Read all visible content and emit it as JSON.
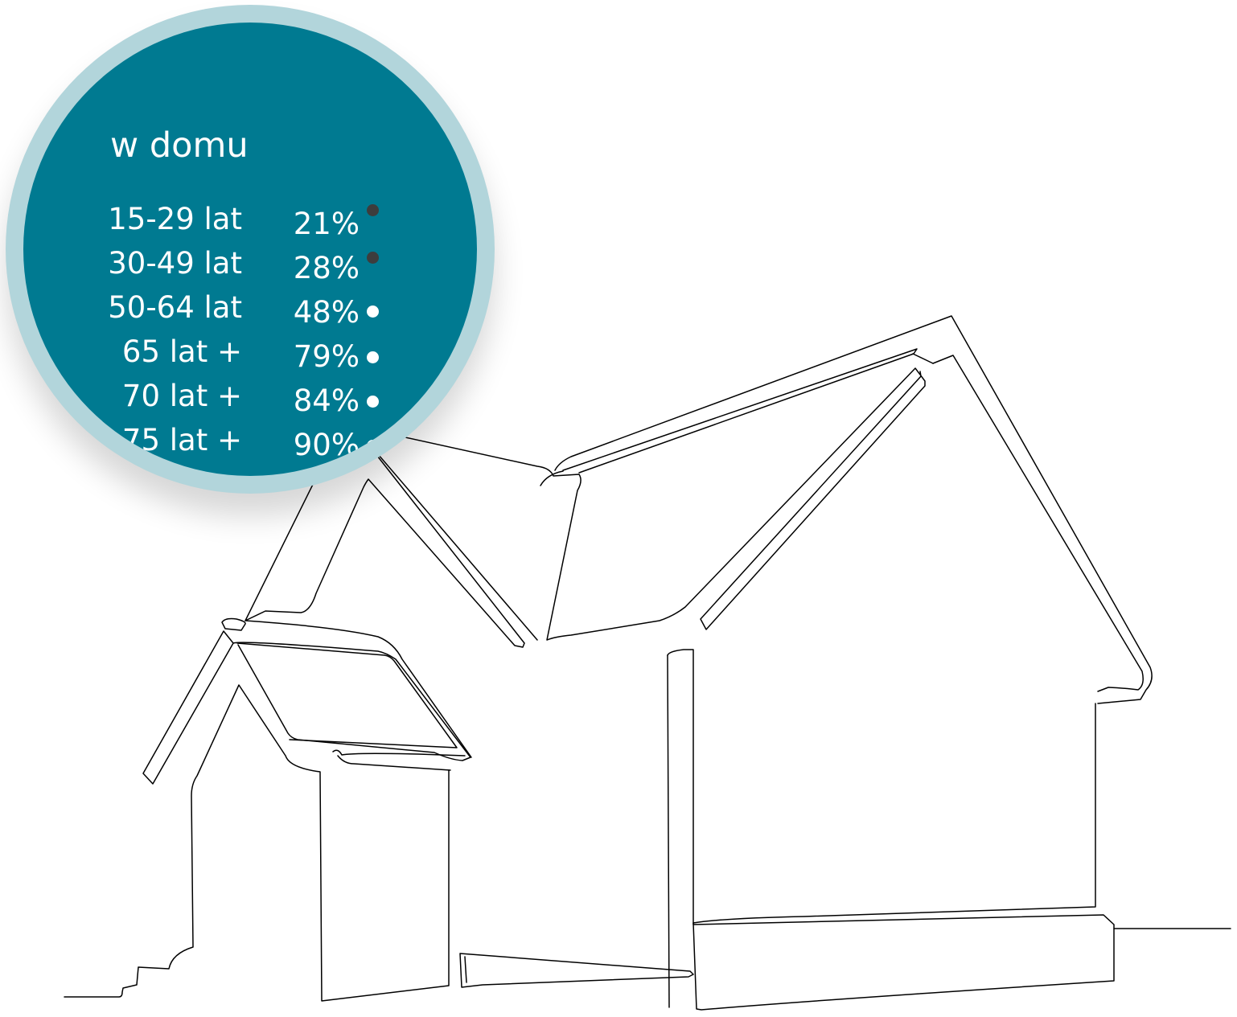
{
  "chart_data": {
    "type": "table",
    "title": "w domu",
    "rows": [
      {
        "label": "15-29 lat",
        "value": "21%",
        "pct": 21,
        "marker_color": "#3d3d3d"
      },
      {
        "label": "30-49 lat",
        "value": "28%",
        "pct": 28,
        "marker_color": "#3d3d3d"
      },
      {
        "label": "50-64 lat",
        "value": "48%",
        "pct": 48,
        "marker_color": "#ffffff"
      },
      {
        "label": "65 lat +",
        "value": "79%",
        "pct": 79,
        "marker_color": "#ffffff"
      },
      {
        "label": "70 lat +",
        "value": "84%",
        "pct": 84,
        "marker_color": "#ffffff"
      },
      {
        "label": "75 lat +",
        "value": "90%",
        "pct": 90,
        "marker_color": "#ffffff"
      }
    ]
  },
  "colors": {
    "circle_fill": "#007a91",
    "circle_ring": "#b2d5db",
    "text": "#ffffff",
    "house_line": "#000000"
  },
  "icons": {
    "illustration": "house-line-drawing-icon"
  }
}
